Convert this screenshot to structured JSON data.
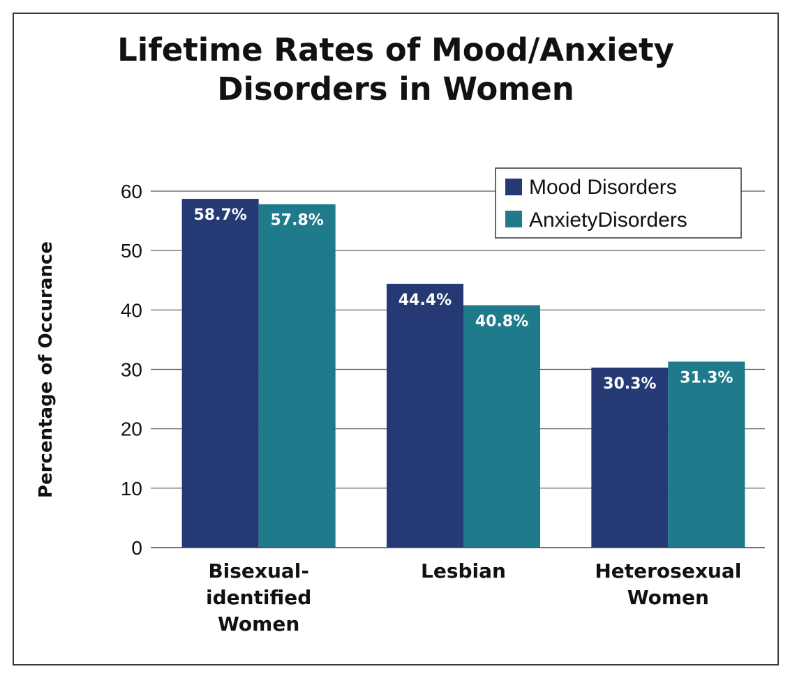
{
  "chart_data": {
    "type": "bar",
    "title": "Lifetime Rates of Mood/Anxiety\nDisorders in Women",
    "ylabel": "Percentage of Occurance",
    "xlabel": "",
    "ylim": [
      0,
      60
    ],
    "yticks": [
      "0",
      "10",
      "20",
      "30",
      "40",
      "50",
      "60"
    ],
    "categories": [
      "Bisexual-\nidentified\nWomen",
      "Lesbian",
      "Heterosexual\nWomen"
    ],
    "series": [
      {
        "name": "Mood Disorders",
        "color": "#253a74",
        "values": [
          58.7,
          44.4,
          30.3
        ],
        "labels": [
          "58.7%",
          "44.4%",
          "30.3%"
        ]
      },
      {
        "name": "AnxietyDisorders",
        "color": "#1f7a8c",
        "values": [
          57.8,
          40.8,
          31.3
        ],
        "labels": [
          "57.8%",
          "40.8%",
          "31.3%"
        ]
      }
    ],
    "grid": true,
    "legend": "top-right"
  }
}
